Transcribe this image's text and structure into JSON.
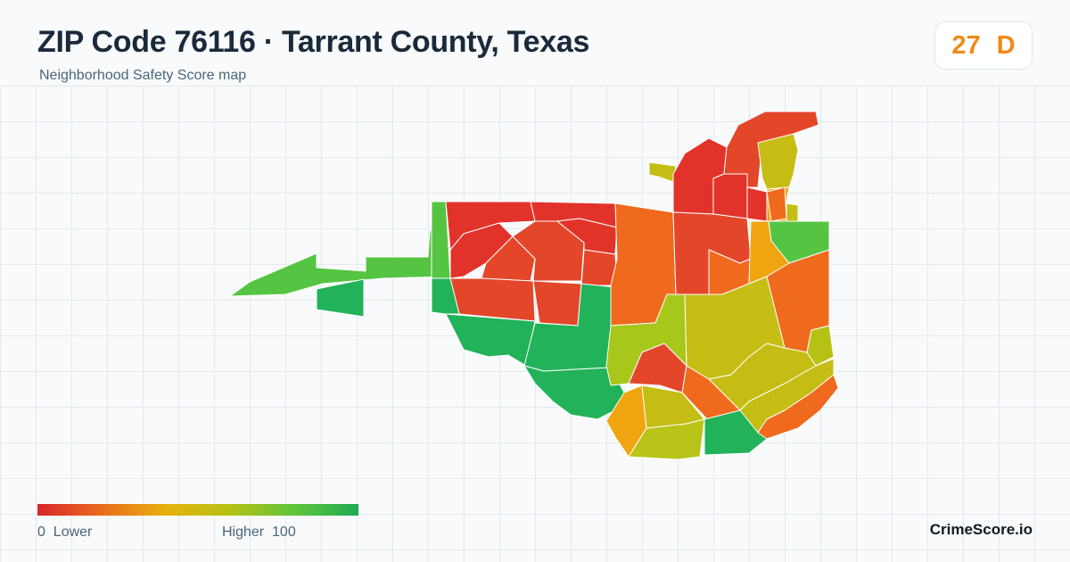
{
  "header": {
    "title": "ZIP Code 76116 · Tarrant County, Texas",
    "subtitle": "Neighborhood Safety Score map"
  },
  "score": {
    "value": "27",
    "grade": "D",
    "color": "#ef8a17"
  },
  "legend": {
    "low_value": "0",
    "low_label": "Lower",
    "high_label": "Higher",
    "high_value": "100",
    "colors": [
      "#d7262b",
      "#ea6b1d",
      "#e7b10f",
      "#b5c213",
      "#5fc43a",
      "#1faa55"
    ]
  },
  "brand": {
    "name": "CrimeScore.io"
  },
  "map": {
    "type": "choropleth",
    "region_colors": {
      "red": "#e2332a",
      "red_orange": "#e4462a",
      "orange": "#ef6a1c",
      "amber": "#f0a510",
      "olive": "#c6bd14",
      "yellow_green": "#a7c71a",
      "light_green": "#55c442",
      "green": "#22b259"
    }
  }
}
